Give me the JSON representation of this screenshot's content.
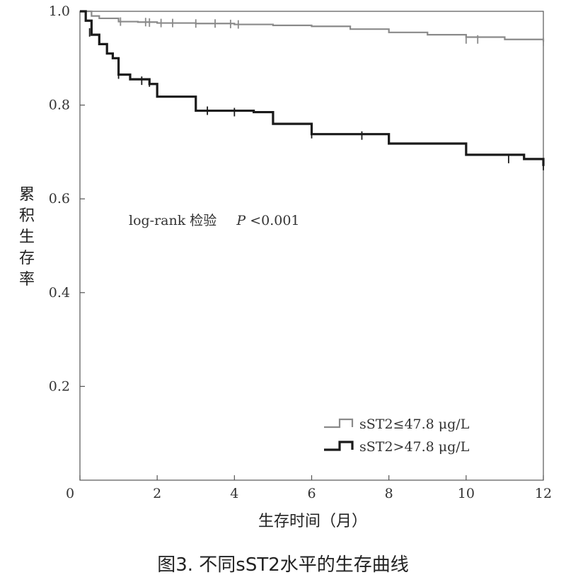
{
  "caption": "图3. 不同sST2水平的生存曲线",
  "chart_data": {
    "type": "line",
    "step": true,
    "xlabel": "生存时间（月）",
    "ylabel": "累积生存率",
    "xlim": [
      0,
      12
    ],
    "ylim": [
      0,
      1.0
    ],
    "xticks": [
      0,
      2,
      4,
      6,
      8,
      10,
      12
    ],
    "xtick_labels": [
      "0",
      "2",
      "4",
      "6",
      "8",
      "10",
      "12"
    ],
    "yticks": [
      0.2,
      0.4,
      0.6,
      0.8,
      1.0
    ],
    "ytick_labels": [
      "0.2",
      "0.4",
      "0.6",
      "0.8",
      "1.0"
    ],
    "grid": false,
    "legend_position": "bottom-right",
    "annotation": {
      "text": "log-rank 检验",
      "p_label": "P",
      "p_value": "<0.001"
    },
    "series": [
      {
        "name": "sST2≤47.8 μg/L",
        "color": "#8a8a8a",
        "x": [
          0,
          0.3,
          0.5,
          1.0,
          1.5,
          2.0,
          3.0,
          4.0,
          5.0,
          6.0,
          7.0,
          8.0,
          9.0,
          10.0,
          11.0,
          12.0
        ],
        "y": [
          1.0,
          0.99,
          0.985,
          0.978,
          0.977,
          0.975,
          0.974,
          0.972,
          0.97,
          0.968,
          0.962,
          0.955,
          0.95,
          0.945,
          0.94,
          0.935
        ],
        "censored": [
          {
            "x": 1.05,
            "y": 0.978
          },
          {
            "x": 1.7,
            "y": 0.977
          },
          {
            "x": 1.8,
            "y": 0.976
          },
          {
            "x": 2.1,
            "y": 0.975
          },
          {
            "x": 2.4,
            "y": 0.975
          },
          {
            "x": 3.0,
            "y": 0.974
          },
          {
            "x": 3.5,
            "y": 0.974
          },
          {
            "x": 3.9,
            "y": 0.973
          },
          {
            "x": 4.1,
            "y": 0.972
          },
          {
            "x": 10.0,
            "y": 0.94
          },
          {
            "x": 10.3,
            "y": 0.94
          },
          {
            "x": 12.0,
            "y": 0.935
          }
        ]
      },
      {
        "name": "sST2>47.8 μg/L",
        "color": "#1a1a1a",
        "x": [
          0,
          0.15,
          0.3,
          0.5,
          0.7,
          0.85,
          1.0,
          1.3,
          1.8,
          2.0,
          3.0,
          4.5,
          5.0,
          6.0,
          8.0,
          10.0,
          11.5,
          12.0
        ],
        "y": [
          1.0,
          0.98,
          0.95,
          0.93,
          0.91,
          0.9,
          0.865,
          0.855,
          0.845,
          0.818,
          0.788,
          0.785,
          0.76,
          0.738,
          0.718,
          0.694,
          0.685,
          0.67
        ],
        "censored": [
          {
            "x": 0.25,
            "y": 0.955
          },
          {
            "x": 1.0,
            "y": 0.865
          },
          {
            "x": 1.6,
            "y": 0.852
          },
          {
            "x": 1.8,
            "y": 0.848
          },
          {
            "x": 3.3,
            "y": 0.788
          },
          {
            "x": 4.0,
            "y": 0.785
          },
          {
            "x": 6.0,
            "y": 0.738
          },
          {
            "x": 7.3,
            "y": 0.735
          },
          {
            "x": 11.1,
            "y": 0.685
          },
          {
            "x": 12.0,
            "y": 0.67
          }
        ]
      }
    ]
  }
}
